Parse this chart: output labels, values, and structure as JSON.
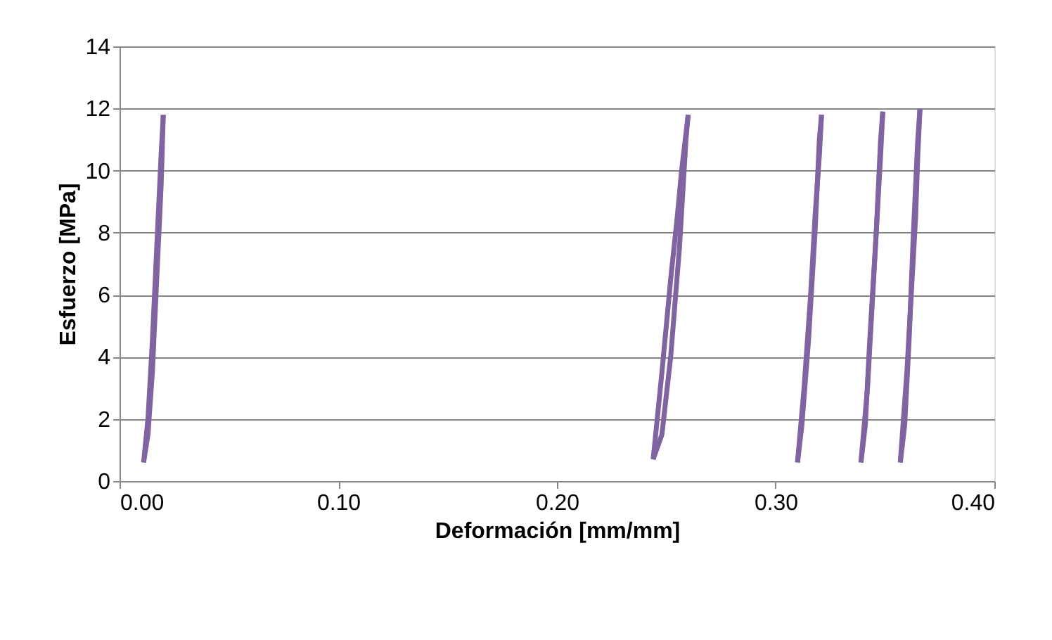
{
  "chart_data": {
    "type": "line",
    "xlabel": "Deformación [mm/mm]",
    "ylabel": "Esfuerzo [MPa]",
    "xlim": [
      0,
      0.4
    ],
    "xticks": [
      {
        "value": 0,
        "label": "0.00"
      },
      {
        "value": 0.1,
        "label": "0.10"
      },
      {
        "value": 0.2,
        "label": "0.20"
      },
      {
        "value": 0.3,
        "label": "0.30"
      },
      {
        "value": 0.4,
        "label": "0.40"
      }
    ],
    "ylim": [
      0,
      14
    ],
    "yticks": [
      0,
      2,
      4,
      6,
      8,
      10,
      12,
      14
    ],
    "grid": "y",
    "marker": "none",
    "line_style": "solid",
    "series": [
      {
        "color": "#8064a2",
        "x": [
          0.011,
          0.013,
          0.015,
          0.017,
          0.019,
          0.02
        ],
        "values": [
          0.6,
          1.5,
          3.5,
          6.5,
          9.5,
          11.8
        ]
      },
      {
        "color": "#8064a2",
        "x": [
          0.011,
          0.013,
          0.015,
          0.017,
          0.019,
          0.02
        ],
        "values": [
          0.6,
          2,
          4.5,
          7.5,
          10.5,
          11.8
        ]
      },
      {
        "color": "#8064a2",
        "x": [
          0.244,
          0.248,
          0.252,
          0.256,
          0.259,
          0.26
        ],
        "values": [
          0.7,
          1.5,
          4,
          7.5,
          11,
          11.8
        ]
      },
      {
        "color": "#8064a2",
        "x": [
          0.244,
          0.248,
          0.252,
          0.255,
          0.257,
          0.26
        ],
        "values": [
          0.7,
          3.5,
          6.5,
          8.5,
          10,
          11.8
        ]
      },
      {
        "color": "#8064a2",
        "x": [
          0.31,
          0.312,
          0.315,
          0.318,
          0.32,
          0.321
        ],
        "values": [
          0.6,
          1.8,
          4.5,
          8,
          11,
          11.8
        ]
      },
      {
        "color": "#8064a2",
        "x": [
          0.31,
          0.313,
          0.316,
          0.318,
          0.32,
          0.321
        ],
        "values": [
          0.6,
          3,
          6,
          8.5,
          10.5,
          11.8
        ]
      },
      {
        "color": "#8064a2",
        "x": [
          0.339,
          0.341,
          0.343,
          0.346,
          0.348,
          0.349
        ],
        "values": [
          0.6,
          1.8,
          4.5,
          8,
          11,
          11.9
        ]
      },
      {
        "color": "#8064a2",
        "x": [
          0.339,
          0.342,
          0.344,
          0.346,
          0.348,
          0.349
        ],
        "values": [
          0.6,
          3,
          5.5,
          8,
          10.5,
          11.9
        ]
      },
      {
        "color": "#8064a2",
        "x": [
          0.357,
          0.359,
          0.361,
          0.363,
          0.365,
          0.366
        ],
        "values": [
          0.6,
          1.8,
          4.5,
          8,
          11,
          12
        ]
      },
      {
        "color": "#8064a2",
        "x": [
          0.357,
          0.36,
          0.362,
          0.364,
          0.365,
          0.366
        ],
        "values": [
          0.6,
          3.5,
          6,
          8.5,
          10.5,
          12
        ]
      }
    ]
  }
}
